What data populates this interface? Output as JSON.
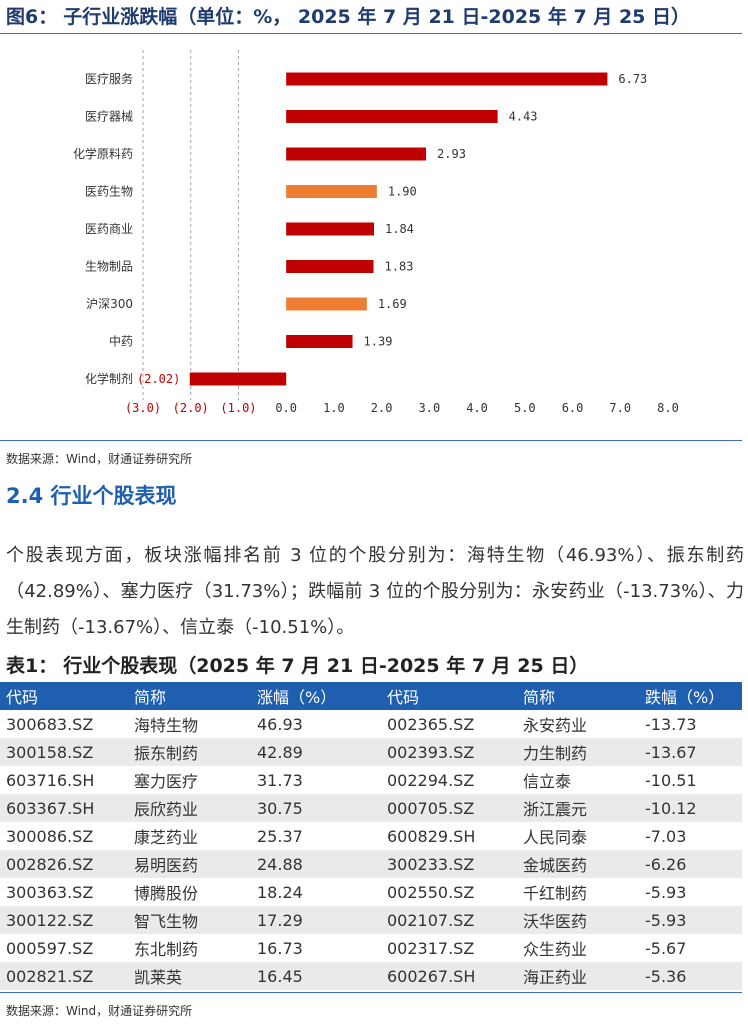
{
  "figure": {
    "label": "图6：",
    "title": "子行业涨跌幅（单位：%，  2025 年 7 月 21 日-2025 年 7 月 25 日）"
  },
  "chart_data": {
    "type": "bar",
    "orientation": "horizontal",
    "categories": [
      "医疗服务",
      "医疗器械",
      "化学原料药",
      "医药生物",
      "医药商业",
      "生物制品",
      "沪深300",
      "中药",
      "化学制剂"
    ],
    "values": [
      6.73,
      4.43,
      2.93,
      1.9,
      1.84,
      1.83,
      1.69,
      1.39,
      -2.02
    ],
    "value_labels": [
      "6.73",
      "4.43",
      "2.93",
      "1.90",
      "1.84",
      "1.83",
      "1.69",
      "1.39",
      "(2.02)"
    ],
    "colors": [
      "#c00000",
      "#c00000",
      "#c00000",
      "#ed7d31",
      "#c00000",
      "#c00000",
      "#ed7d31",
      "#c00000",
      "#c00000"
    ],
    "xlim": [
      -3,
      8
    ],
    "ticks": [
      -3,
      -2,
      -1,
      0,
      1,
      2,
      3,
      4,
      5,
      6,
      7,
      8
    ],
    "tick_labels": [
      "(3.0)",
      "(2.0)",
      "(1.0)",
      "0.0",
      "1.0",
      "2.0",
      "3.0",
      "4.0",
      "5.0",
      "6.0",
      "7.0",
      "8.0"
    ],
    "negative_label_color": "#c00000",
    "grid": "vertical dashed lines at negative ticks",
    "legend": "none"
  },
  "figure_source": "数据来源：Wind，财通证券研究所",
  "section": {
    "heading": "2.4 行业个股表现",
    "paragraph": "个股表现方面，板块涨幅排名前 3 位的个股分别为：海特生物（46.93%）、振东制药（42.89%）、塞力医疗（31.73%）；跌幅前 3 位的个股分别为：永安药业（-13.73%）、力生制药（-13.67%）、信立泰（-10.51%）。"
  },
  "table": {
    "label": "表1：",
    "title": "行业个股表现（2025 年 7 月 21 日-2025 年 7 月 25 日）",
    "headers": [
      "代码",
      "简称",
      "涨幅（%）",
      "代码",
      "简称",
      "跌幅（%）"
    ],
    "rows": [
      [
        "300683.SZ",
        "海特生物",
        "46.93",
        "002365.SZ",
        "永安药业",
        "-13.73"
      ],
      [
        "300158.SZ",
        "振东制药",
        "42.89",
        "002393.SZ",
        "力生制药",
        "-13.67"
      ],
      [
        "603716.SH",
        "塞力医疗",
        "31.73",
        "002294.SZ",
        "信立泰",
        "-10.51"
      ],
      [
        "603367.SH",
        "辰欣药业",
        "30.75",
        "000705.SZ",
        "浙江震元",
        "-10.12"
      ],
      [
        "300086.SZ",
        "康芝药业",
        "25.37",
        "600829.SH",
        "人民同泰",
        "-7.03"
      ],
      [
        "002826.SZ",
        "易明医药",
        "24.88",
        "300233.SZ",
        "金城医药",
        "-6.26"
      ],
      [
        "300363.SZ",
        "博腾股份",
        "18.24",
        "002550.SZ",
        "千红制药",
        "-5.93"
      ],
      [
        "300122.SZ",
        "智飞生物",
        "17.29",
        "002107.SZ",
        "沃华医药",
        "-5.93"
      ],
      [
        "000597.SZ",
        "东北制药",
        "16.73",
        "002317.SZ",
        "众生药业",
        "-5.67"
      ],
      [
        "002821.SZ",
        "凯莱英",
        "16.45",
        "600267.SH",
        "海正药业",
        "-5.36"
      ]
    ]
  },
  "table_source": "数据来源：Wind，财通证券研究所"
}
